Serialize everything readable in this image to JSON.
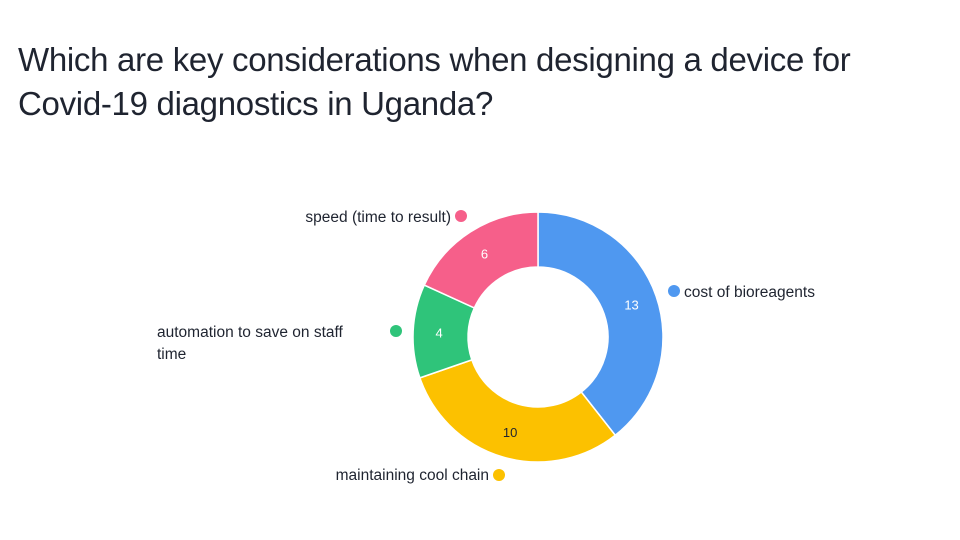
{
  "title": "Which are key considerations when designing a device for Covid-19 diagnostics in Uganda?",
  "chart_data": {
    "type": "pie",
    "variant": "donut",
    "start": "top",
    "direction": "clockwise",
    "slices": [
      {
        "label": "cost of bioreagents",
        "value": 13,
        "color": "#4f98f0",
        "value_color": "#ffffff"
      },
      {
        "label": "maintaining cool chain",
        "value": 10,
        "color": "#fcc100",
        "value_color": "#1f2430"
      },
      {
        "label": "automation to save on staff time",
        "value": 4,
        "color": "#2fc47a",
        "value_color": "#ffffff"
      },
      {
        "label": "speed (time to result)",
        "value": 6,
        "color": "#f65f8a",
        "value_color": "#ffffff"
      }
    ]
  }
}
